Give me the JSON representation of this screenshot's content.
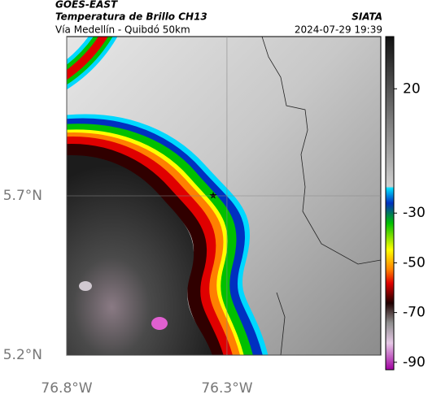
{
  "header": {
    "title": "GOES-EAST",
    "subtitle": "Temperatura de Brillo CH13",
    "source": "SIATA",
    "location": "Vía Medellín - Quibdó 50km",
    "timestamp": "2024-07-29 19:39"
  },
  "map": {
    "xlim": [
      -76.8,
      -75.82
    ],
    "ylim": [
      5.2,
      6.2
    ],
    "xticks": [
      {
        "value": -76.8,
        "label": "76.8°W"
      },
      {
        "value": -76.3,
        "label": "76.3°W"
      }
    ],
    "yticks": [
      {
        "value": 5.7,
        "label": "5.7°N"
      },
      {
        "value": 5.2,
        "label": "5.2°N"
      }
    ]
  },
  "colorbar": {
    "lim": [
      -93,
      41
    ],
    "ticks": [
      20,
      -30,
      -50,
      -70,
      -90
    ]
  }
}
